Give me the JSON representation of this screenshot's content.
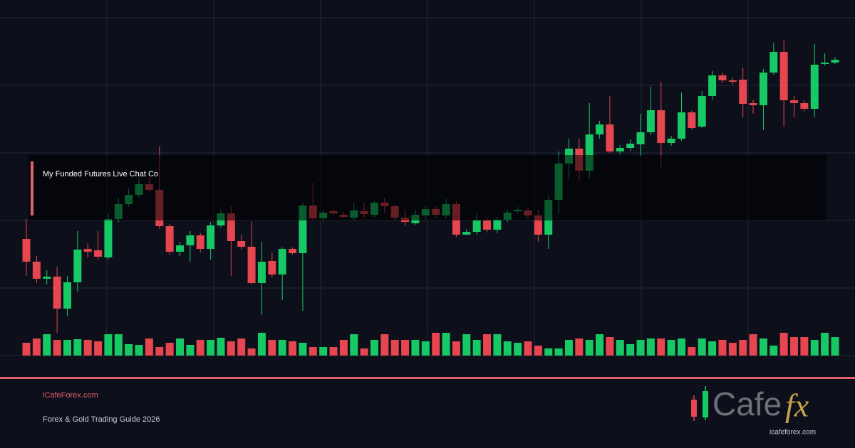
{
  "chart_data": {
    "type": "candlestick",
    "up_color": "#17c964",
    "down_color": "#e5464f",
    "ylim": [
      0,
      500
    ],
    "open": [
      164,
      132,
      108,
      111,
      66,
      103,
      150,
      148,
      138,
      192,
      213,
      226,
      241,
      233,
      182,
      146,
      155,
      169,
      150,
      183,
      200,
      161,
      153,
      102,
      133,
      114,
      150,
      144,
      211,
      193,
      203,
      198,
      194,
      203,
      198,
      215,
      210,
      194,
      186,
      197,
      206,
      197,
      213,
      170,
      174,
      190,
      177,
      191,
      203,
      204,
      197,
      170,
      219,
      270,
      291,
      260,
      311,
      325,
      287,
      292,
      297,
      314,
      345,
      299,
      305,
      342,
      322,
      365,
      394,
      387,
      388,
      355,
      352,
      398,
      427,
      359,
      355,
      347,
      410,
      412
    ],
    "high": [
      192,
      140,
      120,
      125,
      112,
      175,
      158,
      175,
      200,
      222,
      235,
      250,
      250,
      294,
      185,
      160,
      175,
      172,
      188,
      205,
      210,
      170,
      188,
      160,
      145,
      152,
      152,
      215,
      243,
      205,
      206,
      202,
      215,
      215,
      217,
      222,
      212,
      205,
      205,
      210,
      210,
      220,
      217,
      178,
      200,
      194,
      195,
      205,
      209,
      208,
      205,
      225,
      287,
      305,
      305,
      355,
      330,
      365,
      296,
      304,
      340,
      378,
      385,
      309,
      370,
      345,
      372,
      400,
      398,
      391,
      405,
      360,
      403,
      440,
      443,
      365,
      359,
      438,
      425,
      420
    ],
    "low": [
      112,
      102,
      100,
      32,
      55,
      90,
      138,
      135,
      135,
      188,
      209,
      222,
      229,
      178,
      142,
      140,
      132,
      145,
      135,
      180,
      112,
      149,
      100,
      57,
      110,
      78,
      142,
      63,
      190,
      190,
      197,
      193,
      190,
      195,
      195,
      200,
      190,
      182,
      184,
      190,
      194,
      193,
      167,
      170,
      170,
      173,
      172,
      188,
      200,
      193,
      160,
      150,
      200,
      248,
      245,
      250,
      305,
      285,
      283,
      288,
      280,
      310,
      265,
      295,
      302,
      318,
      320,
      360,
      383,
      381,
      335,
      340,
      317,
      395,
      322,
      335,
      343,
      335,
      408,
      410
    ],
    "close": [
      132,
      108,
      111,
      66,
      103,
      149,
      146,
      139,
      192,
      213,
      226,
      241,
      233,
      182,
      146,
      155,
      169,
      150,
      183,
      200,
      161,
      153,
      102,
      132,
      114,
      150,
      144,
      211,
      193,
      201,
      200,
      195,
      204,
      199,
      215,
      210,
      194,
      188,
      198,
      206,
      198,
      213,
      170,
      174,
      190,
      177,
      191,
      201,
      205,
      197,
      170,
      219,
      270,
      291,
      260,
      311,
      325,
      287,
      292,
      298,
      314,
      345,
      299,
      305,
      342,
      320,
      365,
      394,
      387,
      385,
      354,
      352,
      398,
      427,
      359,
      355,
      347,
      409,
      412,
      416
    ],
    "volume": [
      18,
      24,
      30,
      22,
      22,
      23,
      22,
      20,
      30,
      30,
      16,
      15,
      24,
      12,
      18,
      24,
      15,
      22,
      22,
      25,
      20,
      24,
      10,
      32,
      22,
      22,
      20,
      18,
      12,
      12,
      12,
      22,
      30,
      10,
      22,
      30,
      22,
      22,
      22,
      20,
      32,
      32,
      20,
      30,
      22,
      30,
      30,
      20,
      18,
      20,
      14,
      10,
      10,
      22,
      24,
      22,
      30,
      26,
      22,
      16,
      22,
      24,
      24,
      22,
      24,
      12,
      24,
      20,
      22,
      18,
      22,
      30,
      24,
      14,
      32,
      26,
      26,
      22,
      32,
      26
    ]
  },
  "overlay": {
    "label": "My Funded Futures Live Chat Co"
  },
  "footer": {
    "site": "iCafeForex.com",
    "subtitle": "Forex & Gold Trading Guide 2026"
  },
  "logo": {
    "text": "Cafe",
    "accent": "fx",
    "url": "icafeforex.com"
  }
}
